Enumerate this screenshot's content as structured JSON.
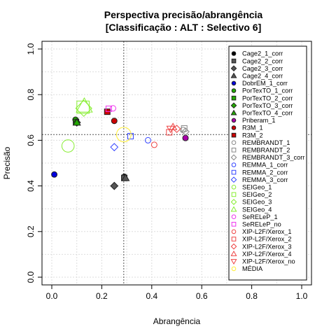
{
  "chart_data": {
    "type": "scatter",
    "title": "Perspectiva precisão/abrangência",
    "subtitle": "[Classificação : ALT : Selectivo 6]",
    "xlabel": "Abrangência",
    "ylabel": "Precisão",
    "xlim": [
      0,
      1
    ],
    "ylim": [
      0,
      1
    ],
    "xticks": [
      "0.0",
      "0.2",
      "0.4",
      "0.6",
      "0.8",
      "1.0"
    ],
    "yticks": [
      "0.0",
      "0.2",
      "0.4",
      "0.6",
      "0.8",
      "1.0"
    ],
    "grid": true,
    "legend_position": "top-right",
    "reference_lines": {
      "x": 0.288,
      "y": 0.625
    },
    "series": [
      {
        "name": "Cage2_1_corr",
        "color": "#000000",
        "marker": "circle",
        "filled": true,
        "x": 0.29,
        "y": 0.44
      },
      {
        "name": "Cage2_2_corr",
        "color": "#555555",
        "marker": "square",
        "filled": true,
        "x": 0.29,
        "y": 0.435
      },
      {
        "name": "Cage2_3_corr",
        "color": "#555555",
        "marker": "diamond",
        "filled": true,
        "x": 0.25,
        "y": 0.4
      },
      {
        "name": "Cage2_4_corr",
        "color": "#555555",
        "marker": "triangle",
        "filled": true,
        "x": 0.295,
        "y": 0.435
      },
      {
        "name": "DobrEM_1_corr",
        "color": "#0000dd",
        "marker": "circle",
        "filled": true,
        "x": 0.01,
        "y": 0.45
      },
      {
        "name": "PorTexTO_1_corr",
        "color": "#22aa00",
        "marker": "circle",
        "filled": true,
        "x": 0.095,
        "y": 0.69
      },
      {
        "name": "PorTexTO_2_corr",
        "color": "#22aa00",
        "marker": "square",
        "filled": true,
        "x": 0.097,
        "y": 0.68
      },
      {
        "name": "PorTexTO_3_corr",
        "color": "#22aa00",
        "marker": "diamond",
        "filled": true,
        "x": 0.1,
        "y": 0.678
      },
      {
        "name": "PorTexTO_4_corr",
        "color": "#22aa00",
        "marker": "triangle",
        "filled": true,
        "x": 0.1,
        "y": 0.678
      },
      {
        "name": "Priberam_1",
        "color": "#aa00aa",
        "marker": "circle",
        "filled": true,
        "x": 0.535,
        "y": 0.61
      },
      {
        "name": "R3M_1",
        "color": "#cc0000",
        "marker": "circle",
        "filled": true,
        "x": 0.25,
        "y": 0.685
      },
      {
        "name": "R3M_2",
        "color": "#cc0000",
        "marker": "square",
        "filled": true,
        "x": 0.222,
        "y": 0.725
      },
      {
        "name": "REMBRANDT_1",
        "color": "#888888",
        "marker": "circle",
        "filled": false,
        "x": 0.525,
        "y": 0.645
      },
      {
        "name": "REMBRANDT_2",
        "color": "#888888",
        "marker": "square",
        "filled": false,
        "x": 0.53,
        "y": 0.652
      },
      {
        "name": "REMBRANDT_3_corr",
        "color": "#888888",
        "marker": "diamond",
        "filled": false,
        "x": 0.535,
        "y": 0.638
      },
      {
        "name": "REMMA_1_corr",
        "color": "#3344ff",
        "marker": "circle",
        "filled": false,
        "x": 0.385,
        "y": 0.6
      },
      {
        "name": "REMMA_2_corr",
        "color": "#3344ff",
        "marker": "square",
        "filled": false,
        "x": 0.315,
        "y": 0.618
      },
      {
        "name": "REMMA_3_corr",
        "color": "#3344ff",
        "marker": "diamond",
        "filled": false,
        "x": 0.25,
        "y": 0.57
      },
      {
        "name": "SEIGeo_1",
        "color": "#88ee33",
        "marker": "circle",
        "filled": false,
        "x": 0.065,
        "y": 0.575,
        "size": 2.2
      },
      {
        "name": "SEIGeo_2",
        "color": "#88ee33",
        "marker": "square",
        "filled": false,
        "x": 0.125,
        "y": 0.745,
        "size": 2.2
      },
      {
        "name": "SEIGeo_3",
        "color": "#88ee33",
        "marker": "diamond",
        "filled": false,
        "x": 0.128,
        "y": 0.74,
        "size": 2.2
      },
      {
        "name": "SEIGeo_4",
        "color": "#88ee33",
        "marker": "triangle",
        "filled": false,
        "x": 0.13,
        "y": 0.75,
        "size": 2.2
      },
      {
        "name": "SeRELeP_1",
        "color": "#ee33ee",
        "marker": "circle",
        "filled": false,
        "x": 0.245,
        "y": 0.74
      },
      {
        "name": "SeRELeP_no",
        "color": "#ee33ee",
        "marker": "square",
        "filled": false,
        "x": 0.228,
        "y": 0.738
      },
      {
        "name": "XIP-L2F/Xerox_1",
        "color": "#ee4444",
        "marker": "circle",
        "filled": false,
        "x": 0.41,
        "y": 0.58
      },
      {
        "name": "XIP-L2F/Xerox_2",
        "color": "#ee4444",
        "marker": "square",
        "filled": false,
        "x": 0.47,
        "y": 0.635
      },
      {
        "name": "XIP-L2F/Xerox_3",
        "color": "#ee4444",
        "marker": "diamond",
        "filled": false,
        "x": 0.5,
        "y": 0.65
      },
      {
        "name": "XIP-L2F/Xerox_4",
        "color": "#ee4444",
        "marker": "triangle",
        "filled": false,
        "x": 0.485,
        "y": 0.658
      },
      {
        "name": "XIP-L2F/Xerox_no",
        "color": "#ee4444",
        "marker": "triangle-down",
        "filled": false,
        "x": 0.475,
        "y": 0.65
      },
      {
        "name": "MÉDIA",
        "color": "#ffee33",
        "marker": "circle",
        "filled": false,
        "x": 0.288,
        "y": 0.625,
        "size": 2.6
      }
    ]
  }
}
